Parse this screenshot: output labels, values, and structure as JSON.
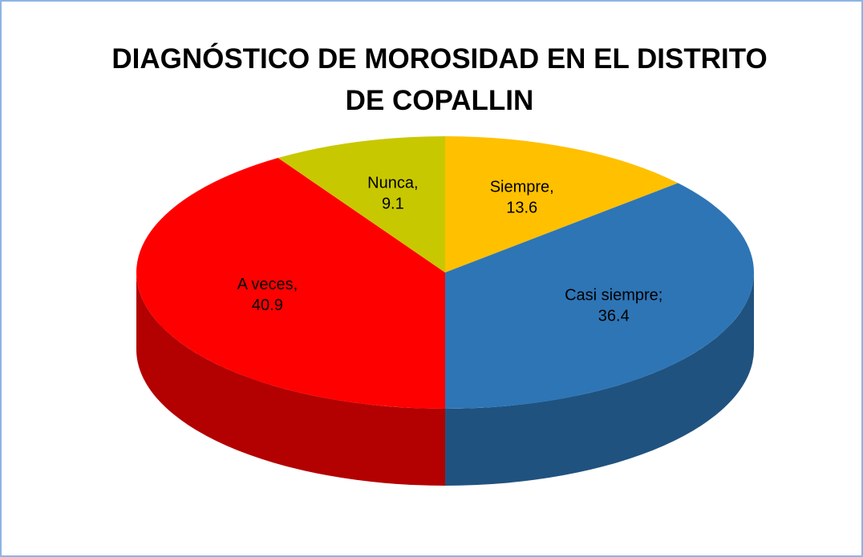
{
  "chart_data": {
    "type": "pie",
    "title": "DIAGNÓSTICO DE MOROSIDAD EN EL DISTRITO DE COPALLIN",
    "categories": [
      "Siempre,",
      "Casi siempre;",
      "A veces,",
      "Nunca,"
    ],
    "values": [
      13.6,
      36.4,
      40.9,
      9.1
    ],
    "colors": [
      "#ffc000",
      "#2e75b6",
      "#ff0000",
      "#c8c800"
    ]
  }
}
